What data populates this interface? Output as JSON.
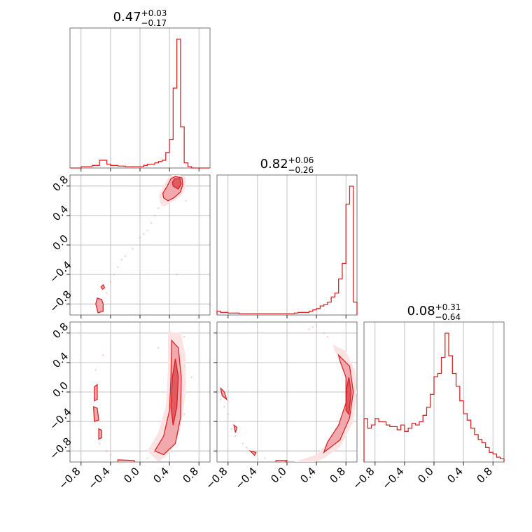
{
  "chart_data": {
    "type": "corner",
    "color": "#d62728",
    "grid": true,
    "ticks": [
      -0.8,
      -0.4,
      0.0,
      0.4,
      0.8
    ],
    "tick_labels": [
      "−0.8",
      "−0.4",
      "0.0",
      "0.4",
      "0.8"
    ],
    "params": [
      {
        "title": {
          "median": "0.47",
          "plus": "+0.03",
          "minus": "−0.17"
        },
        "range": [
          -0.95,
          0.95
        ],
        "hist_bins": [
          [
            -0.95,
            0
          ],
          [
            -0.9,
            0
          ],
          [
            -0.85,
            0
          ],
          [
            -0.8,
            0.01
          ],
          [
            -0.75,
            0.01
          ],
          [
            -0.7,
            0.01
          ],
          [
            -0.65,
            0.02
          ],
          [
            -0.6,
            0.02
          ],
          [
            -0.55,
            0.06
          ],
          [
            -0.5,
            0.06
          ],
          [
            -0.45,
            0.03
          ],
          [
            -0.4,
            0.02
          ],
          [
            -0.35,
            0.02
          ],
          [
            -0.3,
            0.015
          ],
          [
            -0.25,
            0.015
          ],
          [
            -0.2,
            0.01
          ],
          [
            -0.15,
            0.01
          ],
          [
            -0.1,
            0.01
          ],
          [
            -0.05,
            0.01
          ],
          [
            0.0,
            0.01
          ],
          [
            0.05,
            0.02
          ],
          [
            0.1,
            0.03
          ],
          [
            0.15,
            0.03
          ],
          [
            0.2,
            0.04
          ],
          [
            0.25,
            0.05
          ],
          [
            0.3,
            0.06
          ],
          [
            0.35,
            0.12
          ],
          [
            0.4,
            0.22
          ],
          [
            0.45,
            0.62
          ],
          [
            0.5,
            1.0
          ],
          [
            0.55,
            0.32
          ],
          [
            0.6,
            0.04
          ],
          [
            0.65,
            0.01
          ],
          [
            0.7,
            0
          ],
          [
            0.75,
            0
          ],
          [
            0.8,
            0
          ],
          [
            0.85,
            0
          ],
          [
            0.9,
            0
          ]
        ]
      },
      {
        "title": {
          "median": "0.82",
          "plus": "+0.06",
          "minus": "−0.26"
        },
        "range": [
          -0.95,
          0.95
        ],
        "hist_bins": [
          [
            -0.95,
            0.03
          ],
          [
            -0.9,
            0.02
          ],
          [
            -0.85,
            0.02
          ],
          [
            -0.8,
            0.015
          ],
          [
            -0.75,
            0.015
          ],
          [
            -0.7,
            0.015
          ],
          [
            -0.65,
            0.01
          ],
          [
            -0.6,
            0.01
          ],
          [
            -0.55,
            0.01
          ],
          [
            -0.5,
            0.01
          ],
          [
            -0.45,
            0.01
          ],
          [
            -0.4,
            0.01
          ],
          [
            -0.35,
            0.01
          ],
          [
            -0.3,
            0.01
          ],
          [
            -0.25,
            0.01
          ],
          [
            -0.2,
            0.01
          ],
          [
            -0.15,
            0.01
          ],
          [
            -0.1,
            0.01
          ],
          [
            -0.05,
            0.01
          ],
          [
            0.0,
            0.01
          ],
          [
            0.05,
            0.01
          ],
          [
            0.1,
            0.015
          ],
          [
            0.15,
            0.02
          ],
          [
            0.2,
            0.02
          ],
          [
            0.25,
            0.02
          ],
          [
            0.3,
            0.03
          ],
          [
            0.35,
            0.04
          ],
          [
            0.4,
            0.05
          ],
          [
            0.45,
            0.07
          ],
          [
            0.5,
            0.08
          ],
          [
            0.55,
            0.1
          ],
          [
            0.6,
            0.14
          ],
          [
            0.65,
            0.17
          ],
          [
            0.7,
            0.28
          ],
          [
            0.75,
            0.4
          ],
          [
            0.8,
            0.86
          ],
          [
            0.85,
            1.0
          ],
          [
            0.9,
            0.1
          ]
        ]
      },
      {
        "title": {
          "median": "0.08",
          "plus": "+0.31",
          "minus": "−0.64"
        },
        "range": [
          -0.95,
          0.95
        ],
        "hist_bins": [
          [
            -0.95,
            0.27
          ],
          [
            -0.9,
            0.21
          ],
          [
            -0.85,
            0.23
          ],
          [
            -0.8,
            0.27
          ],
          [
            -0.75,
            0.25
          ],
          [
            -0.7,
            0.25
          ],
          [
            -0.65,
            0.23
          ],
          [
            -0.6,
            0.22
          ],
          [
            -0.55,
            0.22
          ],
          [
            -0.5,
            0.2
          ],
          [
            -0.45,
            0.23
          ],
          [
            -0.4,
            0.19
          ],
          [
            -0.35,
            0.21
          ],
          [
            -0.3,
            0.24
          ],
          [
            -0.25,
            0.23
          ],
          [
            -0.2,
            0.25
          ],
          [
            -0.15,
            0.29
          ],
          [
            -0.1,
            0.34
          ],
          [
            -0.05,
            0.42
          ],
          [
            0.0,
            0.53
          ],
          [
            0.05,
            0.55
          ],
          [
            0.1,
            0.65
          ],
          [
            0.15,
            0.8
          ],
          [
            0.2,
            0.66
          ],
          [
            0.25,
            0.55
          ],
          [
            0.3,
            0.47
          ],
          [
            0.35,
            0.38
          ],
          [
            0.4,
            0.3
          ],
          [
            0.45,
            0.26
          ],
          [
            0.5,
            0.21
          ],
          [
            0.55,
            0.17
          ],
          [
            0.6,
            0.14
          ],
          [
            0.65,
            0.12
          ],
          [
            0.7,
            0.09
          ],
          [
            0.75,
            0.06
          ],
          [
            0.8,
            0.05
          ],
          [
            0.85,
            0.03
          ],
          [
            0.9,
            0.02
          ]
        ]
      }
    ],
    "pairs": [
      {
        "x_param": 0,
        "y_param": 1,
        "level1": [
          [
            0.27,
            0.57
          ],
          [
            0.33,
            0.52
          ],
          [
            0.42,
            0.58
          ],
          [
            0.55,
            0.66
          ],
          [
            0.62,
            0.78
          ],
          [
            0.62,
            0.92
          ],
          [
            0.5,
            0.97
          ],
          [
            0.4,
            0.94
          ],
          [
            0.33,
            0.82
          ],
          [
            0.26,
            0.68
          ]
        ],
        "level2": [
          [
            0.32,
            0.64
          ],
          [
            0.38,
            0.6
          ],
          [
            0.46,
            0.64
          ],
          [
            0.55,
            0.72
          ],
          [
            0.58,
            0.82
          ],
          [
            0.57,
            0.91
          ],
          [
            0.48,
            0.93
          ],
          [
            0.42,
            0.9
          ],
          [
            0.37,
            0.8
          ],
          [
            0.31,
            0.7
          ]
        ],
        "level3": [
          [
            0.45,
            0.8
          ],
          [
            0.52,
            0.76
          ],
          [
            0.56,
            0.83
          ],
          [
            0.54,
            0.9
          ],
          [
            0.47,
            0.9
          ],
          [
            0.44,
            0.85
          ]
        ],
        "extra": [
          [
            [
              -0.57,
              -0.92
            ],
            [
              -0.5,
              -0.9
            ],
            [
              -0.5,
              -0.8
            ],
            [
              -0.52,
              -0.74
            ],
            [
              -0.58,
              -0.72
            ],
            [
              -0.6,
              -0.8
            ]
          ],
          [
            [
              -0.51,
              -0.6
            ],
            [
              -0.48,
              -0.58
            ],
            [
              -0.5,
              -0.54
            ],
            [
              -0.53,
              -0.57
            ]
          ]
        ],
        "points": [
          [
            -0.3,
            -0.3
          ],
          [
            -0.2,
            -0.15
          ],
          [
            -0.1,
            -0.05
          ],
          [
            0.0,
            0.1
          ],
          [
            0.1,
            0.2
          ],
          [
            0.15,
            0.3
          ],
          [
            0.2,
            0.4
          ],
          [
            -0.4,
            -0.5
          ],
          [
            -0.35,
            -0.4
          ],
          [
            -0.25,
            -0.2
          ],
          [
            0.05,
            0.15
          ],
          [
            0.25,
            0.5
          ],
          [
            -0.45,
            -0.65
          ],
          [
            0.3,
            0.55
          ],
          [
            0.5,
            -0.4
          ],
          [
            0.62,
            0.6
          ]
        ]
      },
      {
        "x_param": 0,
        "y_param": 2,
        "level1": [
          [
            0.38,
            0.82
          ],
          [
            0.55,
            0.8
          ],
          [
            0.62,
            0.5
          ],
          [
            0.62,
            0.0
          ],
          [
            0.55,
            -0.5
          ],
          [
            0.42,
            -0.8
          ],
          [
            0.25,
            -0.95
          ],
          [
            0.1,
            -0.8
          ],
          [
            0.25,
            -0.55
          ],
          [
            0.35,
            -0.2
          ],
          [
            0.38,
            0.3
          ]
        ],
        "level2": [
          [
            0.43,
            0.7
          ],
          [
            0.52,
            0.6
          ],
          [
            0.56,
            0.2
          ],
          [
            0.55,
            -0.35
          ],
          [
            0.48,
            -0.7
          ],
          [
            0.32,
            -0.85
          ],
          [
            0.2,
            -0.8
          ],
          [
            0.32,
            -0.6
          ],
          [
            0.4,
            -0.25
          ],
          [
            0.42,
            0.2
          ]
        ],
        "level3": [
          [
            0.48,
            0.45
          ],
          [
            0.52,
            0.2
          ],
          [
            0.5,
            -0.2
          ],
          [
            0.45,
            -0.45
          ],
          [
            0.42,
            -0.2
          ],
          [
            0.44,
            0.2
          ]
        ],
        "extra": [
          [
            [
              -0.62,
              0.07
            ],
            [
              -0.58,
              0.1
            ],
            [
              -0.58,
              -0.1
            ],
            [
              -0.62,
              -0.12
            ]
          ],
          [
            [
              -0.63,
              -0.2
            ],
            [
              -0.58,
              -0.22
            ],
            [
              -0.56,
              -0.38
            ],
            [
              -0.62,
              -0.4
            ]
          ],
          [
            [
              -0.56,
              -0.5
            ],
            [
              -0.52,
              -0.52
            ],
            [
              -0.52,
              -0.62
            ],
            [
              -0.56,
              -0.64
            ]
          ],
          [
            [
              -0.3,
              -0.92
            ],
            [
              -0.08,
              -0.93
            ],
            [
              -0.05,
              -0.98
            ],
            [
              -0.3,
              -0.98
            ]
          ]
        ],
        "points": [
          [
            -0.5,
            0.5
          ],
          [
            -0.55,
            -0.7
          ],
          [
            -0.4,
            -0.85
          ],
          [
            0.1,
            -0.9
          ],
          [
            0.6,
            -0.3
          ],
          [
            0.25,
            0.6
          ],
          [
            0.7,
            0.2
          ],
          [
            -0.6,
            0.3
          ],
          [
            -0.45,
            -0.8
          ],
          [
            -0.1,
            -0.95
          ],
          [
            0.6,
            0.75
          ]
        ]
      },
      {
        "x_param": 1,
        "y_param": 2,
        "level1": [
          [
            0.62,
            0.65
          ],
          [
            0.8,
            0.55
          ],
          [
            0.92,
            0.3
          ],
          [
            0.95,
            0.0
          ],
          [
            0.9,
            -0.4
          ],
          [
            0.72,
            -0.75
          ],
          [
            0.5,
            -0.9
          ],
          [
            0.3,
            -0.98
          ],
          [
            0.1,
            -0.95
          ],
          [
            0.4,
            -0.85
          ],
          [
            0.62,
            -0.62
          ],
          [
            0.78,
            -0.3
          ],
          [
            0.82,
            0.0
          ],
          [
            0.78,
            0.3
          ],
          [
            0.65,
            0.55
          ]
        ],
        "level2": [
          [
            0.7,
            0.5
          ],
          [
            0.85,
            0.35
          ],
          [
            0.9,
            0.0
          ],
          [
            0.85,
            -0.35
          ],
          [
            0.72,
            -0.65
          ],
          [
            0.5,
            -0.82
          ],
          [
            0.55,
            -0.68
          ],
          [
            0.7,
            -0.45
          ],
          [
            0.8,
            -0.15
          ],
          [
            0.8,
            0.2
          ],
          [
            0.72,
            0.42
          ]
        ],
        "level3": [
          [
            0.84,
            0.2
          ],
          [
            0.87,
            0.0
          ],
          [
            0.84,
            -0.3
          ],
          [
            0.8,
            -0.25
          ],
          [
            0.81,
            0.05
          ]
        ],
        "extra": [
          [
            [
              -0.9,
              0.05
            ],
            [
              -0.85,
              0.0
            ],
            [
              -0.82,
              -0.1
            ],
            [
              -0.88,
              -0.05
            ]
          ],
          [
            [
              -0.72,
              -0.45
            ],
            [
              -0.68,
              -0.48
            ],
            [
              -0.7,
              -0.55
            ]
          ],
          [
            [
              -0.5,
              -0.8
            ],
            [
              -0.42,
              -0.82
            ],
            [
              -0.44,
              -0.86
            ]
          ],
          [
            [
              -0.15,
              -0.93
            ],
            [
              0.0,
              -0.93
            ],
            [
              -0.05,
              -0.98
            ],
            [
              -0.15,
              -0.97
            ]
          ]
        ],
        "points": [
          [
            -0.85,
            -0.2
          ],
          [
            -0.8,
            -0.3
          ],
          [
            -0.7,
            -0.6
          ],
          [
            -0.6,
            -0.7
          ],
          [
            -0.3,
            -0.9
          ],
          [
            0.2,
            -0.95
          ],
          [
            0.4,
            0.9
          ],
          [
            0.3,
            0.85
          ],
          [
            0.5,
            0.8
          ],
          [
            -0.9,
            -0.1
          ],
          [
            -0.75,
            -0.5
          ],
          [
            -0.55,
            -0.75
          ],
          [
            0.55,
            0.75
          ],
          [
            0.35,
            0.88
          ]
        ]
      }
    ]
  }
}
